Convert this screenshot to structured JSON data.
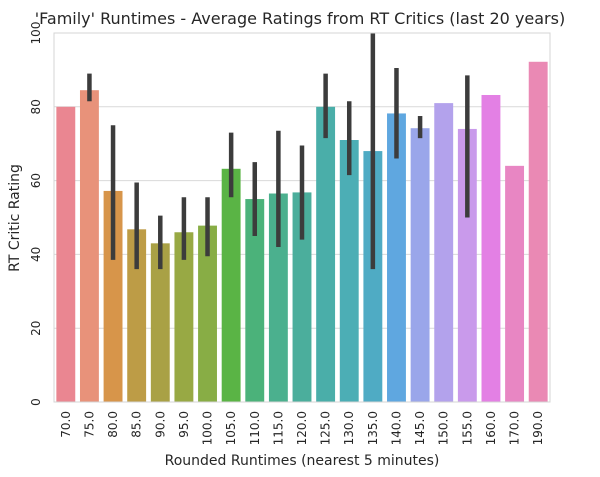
{
  "chart_data": {
    "type": "bar",
    "title": "'Family' Runtimes - Average Ratings from RT Critics (last 20 years)",
    "xlabel": "Rounded Runtimes (nearest 5 minutes)",
    "ylabel": "RT Critic Rating",
    "ylim": [
      0,
      100
    ],
    "yticks": [
      "0",
      "20",
      "40",
      "60",
      "80",
      "100"
    ],
    "grid": true,
    "categories": [
      "70.0",
      "75.0",
      "80.0",
      "85.0",
      "90.0",
      "95.0",
      "100.0",
      "105.0",
      "110.0",
      "115.0",
      "120.0",
      "125.0",
      "130.0",
      "135.0",
      "140.0",
      "145.0",
      "150.0",
      "155.0",
      "160.0",
      "170.0",
      "190.0"
    ],
    "values": [
      80.0,
      84.5,
      57.2,
      46.8,
      43.0,
      46.0,
      47.8,
      63.2,
      55.0,
      56.5,
      56.8,
      80.0,
      71.0,
      68.0,
      78.2,
      74.2,
      81.0,
      74.0,
      83.2,
      64.0,
      92.2
    ],
    "error_low": [
      null,
      81.5,
      38.5,
      36.0,
      36.0,
      38.5,
      39.5,
      55.5,
      45.0,
      42.0,
      44.0,
      71.5,
      61.5,
      36.0,
      66.0,
      71.5,
      null,
      50.0,
      null,
      null,
      null
    ],
    "error_high": [
      null,
      89.0,
      75.0,
      59.5,
      50.5,
      55.5,
      55.5,
      73.0,
      65.0,
      73.5,
      69.5,
      89.0,
      81.5,
      100.0,
      90.5,
      77.5,
      null,
      88.5,
      null,
      null,
      null
    ],
    "colors": [
      "#ea8691",
      "#e8927a",
      "#d7954a",
      "#bd9c46",
      "#a9a145",
      "#98a944",
      "#88ad45",
      "#5ab445",
      "#4bb27a",
      "#4bb08e",
      "#4bae9c",
      "#4aaea9",
      "#4caeb5",
      "#4fabc4",
      "#5fa7e0",
      "#9aa6ea",
      "#b3a2ec",
      "#c99aeb",
      "#e380e4",
      "#e886c3",
      "#ea89b4"
    ]
  }
}
